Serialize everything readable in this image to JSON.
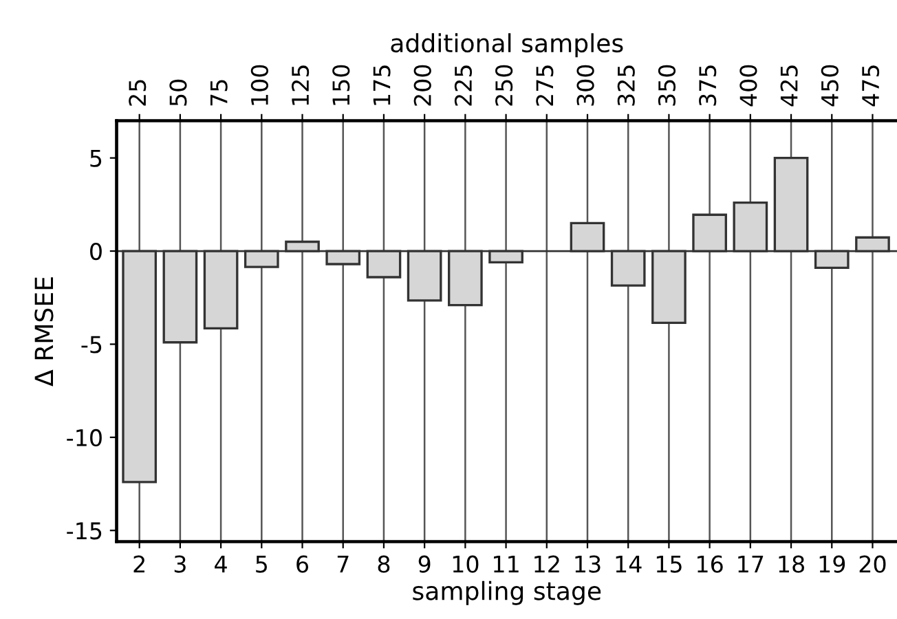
{
  "chart_data": {
    "type": "bar",
    "xlabel": "sampling stage",
    "ylabel": "Δ RMSEE",
    "x2label": "additional samples",
    "categories": [
      "2",
      "3",
      "4",
      "5",
      "6",
      "7",
      "8",
      "9",
      "10",
      "11",
      "12",
      "13",
      "14",
      "15",
      "16",
      "17",
      "18",
      "19",
      "20"
    ],
    "values": [
      -12.4,
      -4.9,
      -4.15,
      -0.85,
      0.5,
      -0.7,
      -1.4,
      -2.65,
      -2.9,
      -0.6,
      null,
      1.5,
      -1.85,
      -3.85,
      1.95,
      2.6,
      5.0,
      -0.9,
      0.73
    ],
    "color": "#d6d6d6",
    "ylim": [
      -15.6,
      7.0
    ],
    "yticks": [
      -15,
      -10,
      -5,
      0,
      5
    ],
    "x2lim": [
      11,
      490
    ],
    "x2ticks": [
      25,
      50,
      75,
      100,
      125,
      150,
      175,
      200,
      225,
      250,
      275,
      300,
      325,
      350,
      375,
      400,
      425,
      450,
      475
    ],
    "grid": "x"
  }
}
